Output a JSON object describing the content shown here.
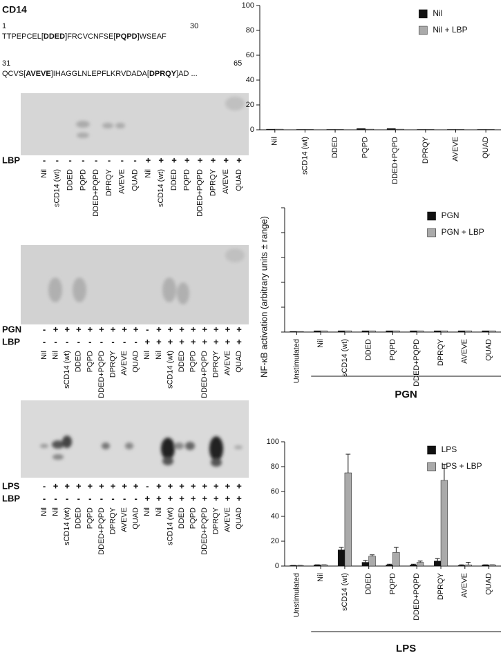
{
  "sequence": {
    "title": "CD14",
    "start1": "1",
    "end1": "30",
    "line1": [
      {
        "text": "TTPEPCEL[",
        "bold": false
      },
      {
        "text": "DDED",
        "bold": true
      },
      {
        "text": "]FRCVCNFSE[",
        "bold": false
      },
      {
        "text": "PQPD",
        "bold": true
      },
      {
        "text": "]WSEAF",
        "bold": false
      }
    ],
    "start2": "31",
    "end2": "65",
    "line2": [
      {
        "text": "QCVS[",
        "bold": false
      },
      {
        "text": "AVEVE",
        "bold": true
      },
      {
        "text": "]IHAGGLNLEPFLKRVDADA[",
        "bold": false
      },
      {
        "text": "DPRQY",
        "bold": true
      },
      {
        "text": "]AD ...",
        "bold": false
      }
    ]
  },
  "gels": [
    {
      "lanes": [
        "Nil",
        "sCD14 (wt)",
        "DDED",
        "PQPD",
        "DDED+PQPD",
        "DPRQY",
        "AVEVE",
        "QUAD",
        "Nil",
        "sCD14 (wt)",
        "DDED",
        "PQPD",
        "DDED+PQPD",
        "DPRQY",
        "AVEVE",
        "QUAD"
      ],
      "rows": [
        {
          "label": "LBP",
          "signs": [
            "-",
            "-",
            "-",
            "-",
            "-",
            "-",
            "-",
            "-",
            "+",
            "+",
            "+",
            "+",
            "+",
            "+",
            "+",
            "+"
          ]
        }
      ]
    },
    {
      "lanes": [
        "Nil",
        "Nil",
        "sCD14 (wt)",
        "DDED",
        "PQPD",
        "DDED+PQPD",
        "DPRQY",
        "AVEVE",
        "QUAD",
        "Nil",
        "Nil",
        "sCD14 (wt)",
        "DDED",
        "PQPD",
        "DDED+PQPD",
        "DPRQY",
        "AVEVE",
        "QUAD"
      ],
      "rows": [
        {
          "label": "PGN",
          "signs": [
            "-",
            "+",
            "+",
            "+",
            "+",
            "+",
            "+",
            "+",
            "+",
            "-",
            "+",
            "+",
            "+",
            "+",
            "+",
            "+",
            "+",
            "+"
          ]
        },
        {
          "label": "LBP",
          "signs": [
            "-",
            "-",
            "-",
            "-",
            "-",
            "-",
            "-",
            "-",
            "-",
            "+",
            "+",
            "+",
            "+",
            "+",
            "+",
            "+",
            "+",
            "+"
          ]
        }
      ]
    },
    {
      "lanes": [
        "Nil",
        "Nil",
        "sCD14 (wt)",
        "DDED",
        "PQPD",
        "DDED+PQPD",
        "DPRQY",
        "AVEVE",
        "QUAD",
        "Nil",
        "Nil",
        "sCD14 (wt)",
        "DDED",
        "PQPD",
        "DDED+PQPD",
        "DPRQY",
        "AVEVE",
        "QUAD"
      ],
      "rows": [
        {
          "label": "LPS",
          "signs": [
            "-",
            "+",
            "+",
            "+",
            "+",
            "+",
            "+",
            "+",
            "+",
            "-",
            "+",
            "+",
            "+",
            "+",
            "+",
            "+",
            "+",
            "+"
          ]
        },
        {
          "label": "LBP",
          "signs": [
            "-",
            "-",
            "-",
            "-",
            "-",
            "-",
            "-",
            "-",
            "-",
            "+",
            "+",
            "+",
            "+",
            "+",
            "+",
            "+",
            "+",
            "+"
          ]
        }
      ]
    }
  ],
  "chart_data": [
    {
      "type": "bar",
      "categories": [
        "Nil",
        "sCD14 (wt)",
        "DDED",
        "PQPD",
        "DDED+PQPD",
        "DPRQY",
        "AVEVE",
        "QUAD"
      ],
      "series": [
        {
          "name": "Nil",
          "color": "#111111",
          "values": [
            0.5,
            0.3,
            0.3,
            1,
            1,
            0.3,
            0.3,
            0.3
          ]
        },
        {
          "name": "Nil + LBP",
          "color": "#aaaaaa",
          "values": [
            0.5,
            0.3,
            0.3,
            0.5,
            0.5,
            0.3,
            0.3,
            0.3
          ]
        }
      ],
      "ylim": [
        0,
        100
      ],
      "yticks": [
        0,
        20,
        40,
        60,
        80,
        100
      ],
      "ytick_labels": true,
      "legend": "upper right"
    },
    {
      "type": "bar",
      "categories": [
        "Unstimulated",
        "Nil",
        "sCD14 (wt)",
        "DDED",
        "PQPD",
        "DDED+PQPD",
        "DPRQY",
        "AVEVE",
        "QUAD"
      ],
      "series": [
        {
          "name": "PGN",
          "color": "#111111",
          "values": [
            0.5,
            1,
            1,
            1,
            1,
            1,
            1,
            1,
            1
          ]
        },
        {
          "name": "PGN + LBP",
          "color": "#aaaaaa",
          "values": [
            0.5,
            1,
            1,
            1,
            1,
            1,
            1,
            1,
            1
          ]
        }
      ],
      "ylim": [
        0,
        100
      ],
      "yticks": [
        0,
        20,
        40,
        60,
        80,
        100
      ],
      "ytick_labels": false,
      "legend": "upper right",
      "ylabel": "NF-κB activation (arbitrary units ± range)",
      "group_label": "PGN"
    },
    {
      "type": "bar",
      "categories": [
        "Unstimulated",
        "Nil",
        "sCD14 (wt)",
        "DDED",
        "PQPD",
        "DDED+PQPD",
        "DPRQY",
        "AVEVE",
        "QUAD"
      ],
      "series": [
        {
          "name": "LPS",
          "color": "#111111",
          "values": [
            0.5,
            1,
            13,
            3,
            1,
            1,
            4,
            0.5,
            1
          ],
          "errors": [
            0,
            0,
            2,
            1.5,
            0.5,
            0.5,
            2,
            0.5,
            0
          ]
        },
        {
          "name": "LPS + LBP",
          "color": "#aaaaaa",
          "values": [
            0.5,
            1,
            75,
            8,
            11,
            3,
            69,
            1,
            1
          ],
          "errors": [
            0,
            0,
            15,
            1,
            4,
            1,
            13,
            2,
            0
          ]
        }
      ],
      "ylim": [
        0,
        100
      ],
      "yticks": [
        0,
        20,
        40,
        60,
        80,
        100
      ],
      "ytick_labels": true,
      "legend": "upper right",
      "group_label": "LPS"
    }
  ]
}
